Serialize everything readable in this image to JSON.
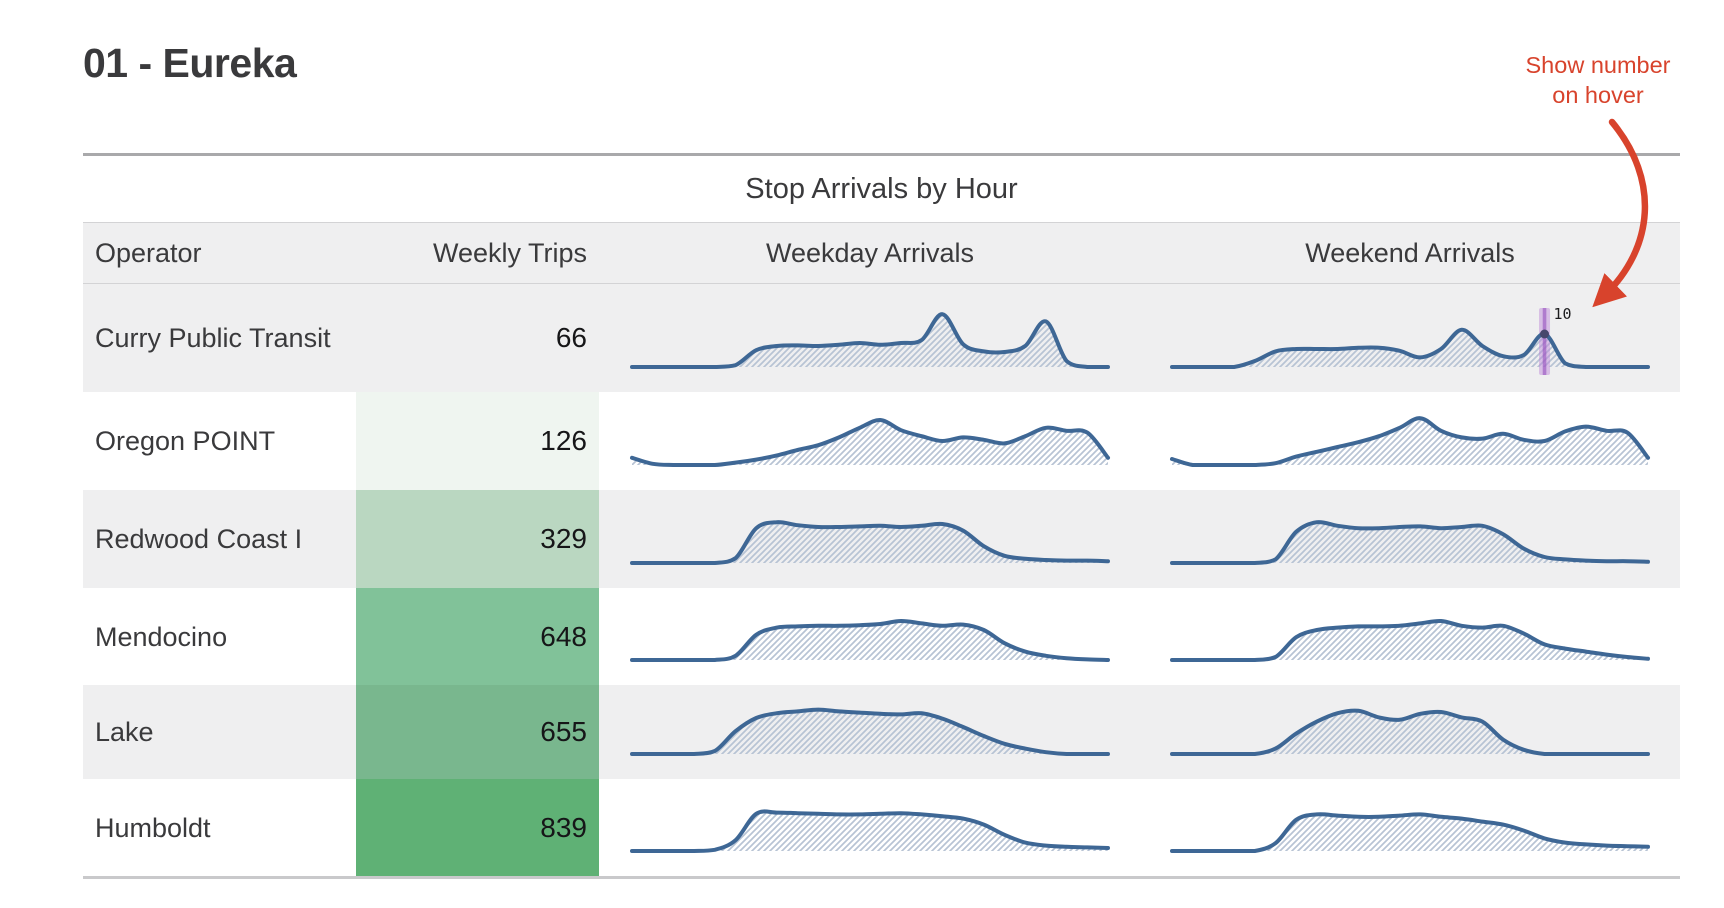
{
  "page_title": "01 - Eureka",
  "annotation": {
    "line1": "Show number",
    "line2": "on hover",
    "color": "#d8432c"
  },
  "table": {
    "title": "Stop Arrivals by Hour",
    "headers": {
      "operator": "Operator",
      "weekly_trips": "Weekly Trips",
      "weekday": "Weekday Arrivals",
      "weekend": "Weekend Arrivals"
    }
  },
  "colors": {
    "accent_annotation": "#d8432c",
    "row_stripe": "#efeff0",
    "border_dark": "#a9a9ab",
    "border_light": "#c9c9cb",
    "sparkline_stroke": "#3e6795",
    "sparkline_hatch": "#b7c3d4",
    "marker_band": "rgba(186,130,214,0.45)",
    "marker_core": "rgba(150,80,190,0.6)",
    "marker_dot": "#47476b",
    "green_scale": [
      "#efeff0",
      "#eff5f0",
      "#bad7c1",
      "#81c299",
      "#79b78e",
      "#5fb175"
    ]
  },
  "chart_data": {
    "type": "table",
    "title": "Stop Arrivals by Hour",
    "columns": [
      "Operator",
      "Weekly Trips",
      "Weekday Arrivals",
      "Weekend Arrivals"
    ],
    "x_domain": "hour of day (0-23)",
    "values_scale": "relative arrival volume 0-100, estimated from sparkline heights",
    "rows": [
      {
        "operator": "Curry Public Transit",
        "weekly_trips": 66,
        "trips_cell_color": "#efeff0",
        "weekday": [
          0,
          0,
          0,
          0,
          0,
          3,
          28,
          35,
          36,
          35,
          37,
          40,
          37,
          40,
          45,
          88,
          38,
          26,
          25,
          35,
          76,
          10,
          0,
          0
        ],
        "weekend": [
          0,
          0,
          0,
          0,
          10,
          26,
          30,
          30,
          30,
          32,
          32,
          27,
          16,
          30,
          62,
          35,
          18,
          20,
          55,
          6,
          0,
          0,
          0,
          0
        ],
        "marker": {
          "series": "weekend",
          "index": 18,
          "label": "10",
          "value": 10
        }
      },
      {
        "operator": "Oregon POINT",
        "weekly_trips": 126,
        "trips_cell_color": "#eff5f0",
        "weekday": [
          12,
          2,
          0,
          0,
          0,
          4,
          9,
          16,
          25,
          33,
          46,
          62,
          75,
          58,
          48,
          40,
          46,
          42,
          36,
          48,
          62,
          57,
          54,
          12
        ],
        "weekend": [
          10,
          0,
          0,
          0,
          0,
          3,
          14,
          22,
          30,
          38,
          48,
          62,
          78,
          57,
          46,
          44,
          52,
          42,
          40,
          56,
          64,
          57,
          54,
          12
        ]
      },
      {
        "operator": "Redwood Coast I",
        "weekly_trips": 329,
        "trips_cell_color": "#bad7c1",
        "weekday": [
          0,
          0,
          0,
          0,
          0,
          8,
          58,
          68,
          63,
          60,
          60,
          61,
          62,
          60,
          62,
          65,
          54,
          28,
          12,
          7,
          5,
          4,
          4,
          3
        ],
        "weekend": [
          0,
          0,
          0,
          0,
          0,
          6,
          52,
          68,
          62,
          58,
          58,
          60,
          61,
          58,
          60,
          62,
          48,
          24,
          10,
          6,
          4,
          3,
          3,
          2
        ]
      },
      {
        "operator": "Mendocino",
        "weekly_trips": 648,
        "trips_cell_color": "#81c299",
        "weekday": [
          0,
          0,
          0,
          0,
          0,
          7,
          42,
          54,
          56,
          57,
          57,
          58,
          60,
          65,
          61,
          57,
          59,
          50,
          28,
          14,
          7,
          3,
          1,
          0
        ],
        "weekend": [
          0,
          0,
          0,
          0,
          0,
          5,
          38,
          50,
          54,
          56,
          56,
          57,
          61,
          65,
          57,
          54,
          57,
          44,
          26,
          19,
          14,
          9,
          5,
          2
        ]
      },
      {
        "operator": "Lake",
        "weekly_trips": 655,
        "trips_cell_color": "#79b78e",
        "weekday": [
          0,
          0,
          0,
          0,
          5,
          38,
          60,
          68,
          71,
          74,
          71,
          69,
          67,
          66,
          68,
          59,
          45,
          30,
          17,
          9,
          3,
          0,
          0,
          0
        ],
        "weekend": [
          0,
          0,
          0,
          0,
          0,
          9,
          34,
          54,
          68,
          72,
          61,
          57,
          67,
          70,
          61,
          54,
          24,
          7,
          0,
          0,
          0,
          0,
          0,
          0
        ]
      },
      {
        "operator": "Humboldt",
        "weekly_trips": 839,
        "trips_cell_color": "#5fb175",
        "weekday": [
          0,
          0,
          0,
          0,
          2,
          18,
          62,
          64,
          63,
          62,
          61,
          61,
          62,
          63,
          61,
          58,
          54,
          44,
          27,
          14,
          9,
          7,
          6,
          5
        ],
        "weekend": [
          0,
          0,
          0,
          0,
          0,
          13,
          52,
          61,
          59,
          57,
          57,
          59,
          61,
          57,
          54,
          49,
          44,
          34,
          21,
          14,
          11,
          9,
          8,
          7
        ]
      }
    ]
  }
}
